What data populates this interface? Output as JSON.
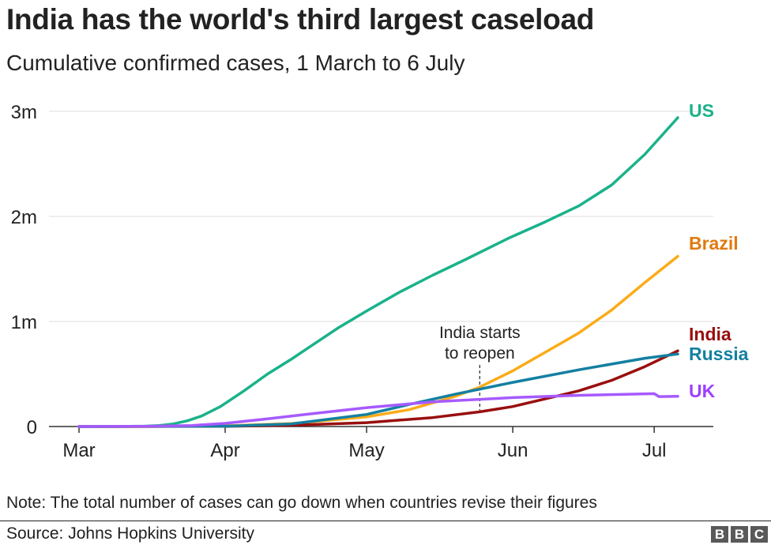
{
  "header": {
    "title": "India has the world's third largest caseload",
    "subtitle": "Cumulative confirmed cases, 1 March to 6 July"
  },
  "footer": {
    "note": "Note: The total number of cases can go down when countries revise their figures",
    "source": "Source: Johns Hopkins University",
    "logo_letters": [
      "B",
      "B",
      "C"
    ]
  },
  "chart_data": {
    "type": "line",
    "x_unit": "date",
    "x_range": [
      "2020-03-01",
      "2020-07-06"
    ],
    "ylim": [
      0,
      3000000
    ],
    "grid": true,
    "y_ticks": [
      {
        "value": 0,
        "label": "0"
      },
      {
        "value": 1000000,
        "label": "1m"
      },
      {
        "value": 2000000,
        "label": "2m"
      },
      {
        "value": 3000000,
        "label": "3m"
      }
    ],
    "x_ticks": [
      {
        "date": "2020-03-01",
        "label": "Mar"
      },
      {
        "date": "2020-04-01",
        "label": "Apr"
      },
      {
        "date": "2020-05-01",
        "label": "May"
      },
      {
        "date": "2020-06-01",
        "label": "Jun"
      },
      {
        "date": "2020-07-01",
        "label": "Jul"
      }
    ],
    "series": [
      {
        "name": "US",
        "color": "#1ab28a",
        "points": [
          [
            "2020-03-01",
            75
          ],
          [
            "2020-03-10",
            1000
          ],
          [
            "2020-03-15",
            3500
          ],
          [
            "2020-03-18",
            9000
          ],
          [
            "2020-03-21",
            25000
          ],
          [
            "2020-03-24",
            55000
          ],
          [
            "2020-03-27",
            100000
          ],
          [
            "2020-03-31",
            190000
          ],
          [
            "2020-04-05",
            340000
          ],
          [
            "2020-04-10",
            500000
          ],
          [
            "2020-04-15",
            640000
          ],
          [
            "2020-04-20",
            790000
          ],
          [
            "2020-04-25",
            940000
          ],
          [
            "2020-05-01",
            1100000
          ],
          [
            "2020-05-08",
            1280000
          ],
          [
            "2020-05-15",
            1440000
          ],
          [
            "2020-05-22",
            1590000
          ],
          [
            "2020-05-31",
            1790000
          ],
          [
            "2020-06-08",
            1950000
          ],
          [
            "2020-06-15",
            2100000
          ],
          [
            "2020-06-22",
            2300000
          ],
          [
            "2020-06-29",
            2590000
          ],
          [
            "2020-07-06",
            2940000
          ]
        ]
      },
      {
        "name": "Brazil",
        "color": "#fbab18",
        "label_color": "#e07a10",
        "points": [
          [
            "2020-03-01",
            2
          ],
          [
            "2020-03-15",
            200
          ],
          [
            "2020-04-01",
            6800
          ],
          [
            "2020-04-15",
            28000
          ],
          [
            "2020-05-01",
            92000
          ],
          [
            "2020-05-10",
            160000
          ],
          [
            "2020-05-20",
            290000
          ],
          [
            "2020-05-25",
            375000
          ],
          [
            "2020-06-01",
            530000
          ],
          [
            "2020-06-08",
            710000
          ],
          [
            "2020-06-15",
            890000
          ],
          [
            "2020-06-22",
            1110000
          ],
          [
            "2020-06-29",
            1370000
          ],
          [
            "2020-07-06",
            1620000
          ]
        ]
      },
      {
        "name": "India",
        "color": "#990f0f",
        "points": [
          [
            "2020-03-01",
            3
          ],
          [
            "2020-04-01",
            1900
          ],
          [
            "2020-04-15",
            12000
          ],
          [
            "2020-05-01",
            37000
          ],
          [
            "2020-05-15",
            85000
          ],
          [
            "2020-05-25",
            140000
          ],
          [
            "2020-06-01",
            190000
          ],
          [
            "2020-06-08",
            265000
          ],
          [
            "2020-06-15",
            340000
          ],
          [
            "2020-06-22",
            440000
          ],
          [
            "2020-06-29",
            570000
          ],
          [
            "2020-07-06",
            720000
          ]
        ]
      },
      {
        "name": "Russia",
        "color": "#1380a1",
        "points": [
          [
            "2020-03-01",
            0
          ],
          [
            "2020-04-01",
            2800
          ],
          [
            "2020-04-15",
            25000
          ],
          [
            "2020-05-01",
            115000
          ],
          [
            "2020-05-10",
            210000
          ],
          [
            "2020-05-20",
            310000
          ],
          [
            "2020-06-01",
            420000
          ],
          [
            "2020-06-15",
            540000
          ],
          [
            "2020-06-29",
            650000
          ],
          [
            "2020-07-06",
            690000
          ]
        ]
      },
      {
        "name": "UK",
        "color": "#a65aff",
        "label_color": "#9e3fff",
        "points": [
          [
            "2020-03-01",
            40
          ],
          [
            "2020-03-15",
            1400
          ],
          [
            "2020-03-25",
            9500
          ],
          [
            "2020-04-01",
            30000
          ],
          [
            "2020-04-10",
            74000
          ],
          [
            "2020-04-20",
            125000
          ],
          [
            "2020-05-01",
            180000
          ],
          [
            "2020-05-15",
            235000
          ],
          [
            "2020-06-01",
            275000
          ],
          [
            "2020-06-15",
            297000
          ],
          [
            "2020-07-01",
            313000
          ],
          [
            "2020-07-02",
            285000
          ],
          [
            "2020-07-06",
            287000
          ]
        ]
      }
    ],
    "annotation": {
      "lines": [
        "India starts",
        "to reopen"
      ],
      "date": "2020-05-25",
      "value": 140000
    }
  }
}
